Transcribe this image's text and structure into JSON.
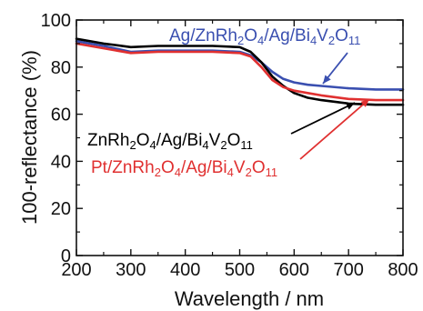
{
  "chart_data": {
    "type": "line",
    "xlabel": "Wavelength / nm",
    "ylabel": "100-reflectance (%)",
    "xlim": [
      200,
      800
    ],
    "ylim": [
      0,
      100
    ],
    "xticks": [
      200,
      300,
      400,
      500,
      600,
      700,
      800
    ],
    "yticks": [
      0,
      20,
      40,
      60,
      80,
      100
    ],
    "grid": false,
    "series": [
      {
        "name": "Ag/ZnRh₂O₄/Ag/Bi₄V₂O₁₁",
        "color": "#3a4fb0",
        "x": [
          200,
          250,
          300,
          350,
          400,
          450,
          500,
          520,
          540,
          560,
          580,
          600,
          625,
          650,
          700,
          750,
          800
        ],
        "y": [
          91,
          89,
          86.5,
          87,
          87,
          87,
          86.5,
          85,
          82,
          78,
          75,
          73.5,
          72.5,
          72,
          71,
          70.5,
          70.5
        ]
      },
      {
        "name": "ZnRh₂O₄/Ag/Bi₄V₂O₁₁",
        "color": "#000000",
        "x": [
          200,
          250,
          300,
          350,
          400,
          450,
          500,
          520,
          540,
          560,
          580,
          600,
          625,
          650,
          700,
          750,
          800
        ],
        "y": [
          92,
          90,
          88.5,
          89,
          89,
          89,
          88.5,
          86.5,
          82,
          76,
          72,
          69,
          67,
          66,
          64.5,
          64,
          64
        ]
      },
      {
        "name": "Pt/ZnRh₂O₄/Ag/Bi₄V₂O₁₁",
        "color": "#e03030",
        "x": [
          200,
          250,
          300,
          350,
          400,
          450,
          500,
          520,
          540,
          560,
          580,
          600,
          625,
          650,
          700,
          750,
          800
        ],
        "y": [
          90,
          88,
          86,
          86.5,
          86.5,
          86.5,
          86,
          84.5,
          80,
          74.5,
          71.5,
          70,
          69,
          68,
          66.5,
          66,
          66
        ]
      }
    ],
    "legend": [
      {
        "series": 0,
        "base": "Ag/ZnRh",
        "s1": "2",
        "m1": "O",
        "s2": "4",
        "m2": "/Ag/Bi",
        "s3": "4",
        "m3": "V",
        "s4": "2",
        "m4": "O",
        "s5": "11",
        "color": "#3a4fb0"
      },
      {
        "series": 1,
        "base": "ZnRh",
        "s1": "2",
        "m1": "O",
        "s2": "4",
        "m2": "/Ag/Bi",
        "s3": "4",
        "m3": "V",
        "s4": "2",
        "m4": "O",
        "s5": "11",
        "color": "#000000"
      },
      {
        "series": 2,
        "base": "Pt/ZnRh",
        "s1": "2",
        "m1": "O",
        "s2": "4",
        "m2": "/Ag/Bi",
        "s3": "4",
        "m3": "V",
        "s4": "2",
        "m4": "O",
        "s5": "11",
        "color": "#e03030"
      }
    ]
  }
}
